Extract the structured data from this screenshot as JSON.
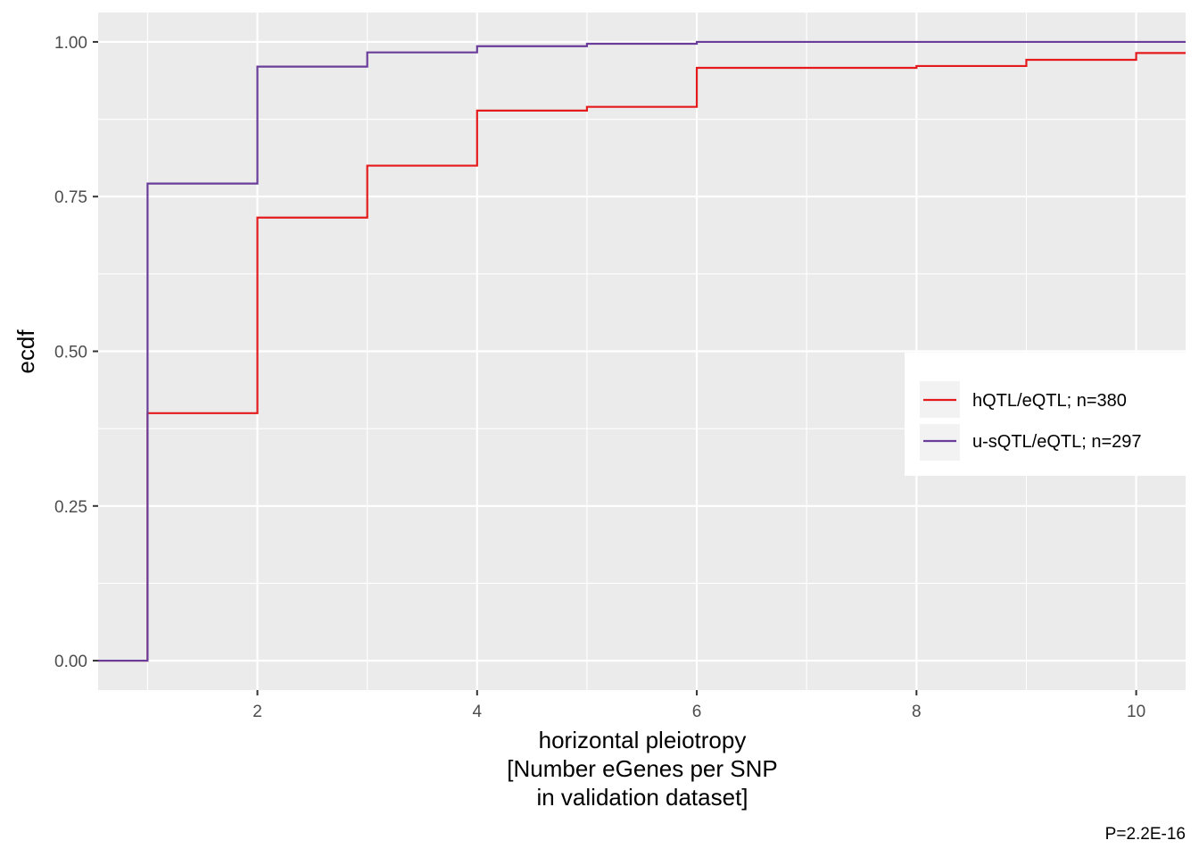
{
  "chart_data": {
    "type": "line",
    "step": true,
    "xlabel": [
      "horizontal pleiotropy",
      "[Number eGenes per SNP",
      "in validation dataset]"
    ],
    "ylabel": "ecdf",
    "caption": "P=2.2E-16",
    "xlim": [
      0.55,
      10.45
    ],
    "ylim": [
      -0.0475,
      1.0475
    ],
    "x_ticks": [
      2,
      4,
      6,
      8,
      10
    ],
    "x_tick_labels": [
      "2",
      "4",
      "6",
      "8",
      "10"
    ],
    "y_ticks": [
      0,
      0.25,
      0.5,
      0.75,
      1.0
    ],
    "y_tick_labels": [
      "0.00",
      "0.25",
      "0.50",
      "0.75",
      "1.00"
    ],
    "grid": true,
    "legend_position": "right",
    "series": [
      {
        "name": "hQTL/eQTL; n=380",
        "color": "#e41a1c",
        "x": [
          1,
          2,
          3,
          4,
          5,
          6,
          8,
          9,
          10
        ],
        "y": [
          0.4,
          0.716,
          0.8,
          0.889,
          0.895,
          0.958,
          0.961,
          0.971,
          0.982
        ]
      },
      {
        "name": "u-sQTL/eQTL; n=297",
        "color": "#6a3d9a",
        "x": [
          1,
          2,
          3,
          4,
          5,
          6
        ],
        "y": [
          0.771,
          0.96,
          0.983,
          0.993,
          0.997,
          1.0
        ]
      }
    ]
  }
}
